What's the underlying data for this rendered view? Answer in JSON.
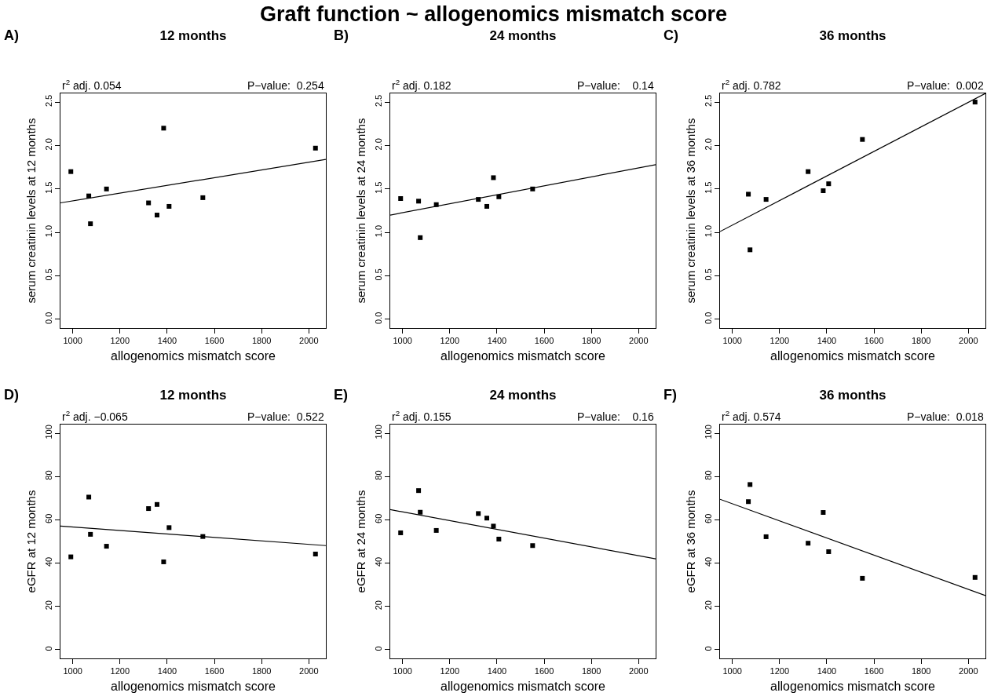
{
  "chart_data": [
    {
      "type": "scatter",
      "title": "12 months",
      "xlabel": "allogenomics mismatch score",
      "ylabel": "serum creatinin levels at 12 months",
      "annotations": [
        "Graft function ~ allogenomics mismatch score",
        "A)",
        "r$^{2}$ adj. 0.054",
        "P−value:  0.254"
      ],
      "xlim": [
        948,
        2072
      ],
      "xticks": [
        1000,
        1200,
        1400,
        1600,
        1800,
        2000
      ],
      "ylim": [
        -0.1,
        2.6
      ],
      "yticks": [
        {
          "value": 0,
          "label": "0.0"
        },
        {
          "value": 0.5,
          "label": "0.5"
        },
        {
          "value": 1,
          "label": "1.0"
        },
        {
          "value": 1.5,
          "label": "1.5"
        },
        {
          "value": 2,
          "label": "2.0"
        },
        {
          "value": 2.5,
          "label": "2.5"
        }
      ],
      "grid": false,
      "legend": false,
      "series": [
        {
          "color": "#000000",
          "marker": "square",
          "x": [
            992,
            1068,
            1075,
            1143,
            1321,
            1357,
            1385,
            1408,
            1551,
            2028
          ],
          "values": [
            1.7,
            1.42,
            1.1,
            1.5,
            1.34,
            1.2,
            2.2,
            1.3,
            1.4,
            1.97
          ]
        },
        {
          "type": "line",
          "color": "#000000",
          "x": [
            948,
            2072
          ],
          "values": [
            1.34,
            1.84
          ]
        }
      ]
    },
    {
      "type": "scatter",
      "title": "24 months",
      "xlabel": "allogenomics mismatch score",
      "ylabel": "serum creatinin levels at 24 months",
      "annotations": [
        "B)",
        "r$^{2}$ adj. 0.182",
        "P−value:    0.14"
      ],
      "xlim": [
        948,
        2072
      ],
      "xticks": [
        1000,
        1200,
        1400,
        1600,
        1800,
        2000
      ],
      "ylim": [
        -0.1,
        2.6
      ],
      "yticks": [
        {
          "value": 0,
          "label": "0.0"
        },
        {
          "value": 0.5,
          "label": "0.5"
        },
        {
          "value": 1,
          "label": "1.0"
        },
        {
          "value": 1.5,
          "label": "1.5"
        },
        {
          "value": 2,
          "label": "2.0"
        },
        {
          "value": 2.5,
          "label": "2.5"
        }
      ],
      "grid": false,
      "legend": false,
      "series": [
        {
          "color": "#000000",
          "marker": "square",
          "x": [
            992,
            1068,
            1075,
            1143,
            1321,
            1357,
            1385,
            1408,
            1551
          ],
          "values": [
            1.39,
            1.36,
            0.94,
            1.32,
            1.38,
            1.3,
            1.63,
            1.41,
            1.5
          ]
        },
        {
          "type": "line",
          "color": "#000000",
          "x": [
            948,
            2072
          ],
          "values": [
            1.2,
            1.78
          ]
        }
      ]
    },
    {
      "type": "scatter",
      "title": "36 months",
      "xlabel": "allogenomics mismatch score",
      "ylabel": "serum creatinin levels at 36 months",
      "annotations": [
        "C)",
        "r$^{2}$ adj. 0.782",
        "P−value:  0.002"
      ],
      "xlim": [
        948,
        2072
      ],
      "xticks": [
        1000,
        1200,
        1400,
        1600,
        1800,
        2000
      ],
      "ylim": [
        -0.1,
        2.6
      ],
      "yticks": [
        {
          "value": 0,
          "label": "0.0"
        },
        {
          "value": 0.5,
          "label": "0.5"
        },
        {
          "value": 1,
          "label": "1.0"
        },
        {
          "value": 1.5,
          "label": "1.5"
        },
        {
          "value": 2,
          "label": "2.0"
        },
        {
          "value": 2.5,
          "label": "2.5"
        }
      ],
      "grid": false,
      "legend": false,
      "series": [
        {
          "color": "#000000",
          "marker": "square",
          "x": [
            1068,
            1075,
            1143,
            1321,
            1385,
            1408,
            1551,
            2028
          ],
          "values": [
            1.44,
            0.8,
            1.38,
            1.7,
            1.48,
            1.56,
            2.07,
            2.5
          ]
        },
        {
          "type": "line",
          "color": "#000000",
          "x": [
            948,
            2072
          ],
          "values": [
            1.01,
            2.6
          ]
        }
      ]
    },
    {
      "type": "scatter",
      "title": "12 months",
      "xlabel": "allogenomics mismatch score",
      "ylabel": "eGFR at 12 months",
      "annotations": [
        "D)",
        "r$^{2}$ adj. −0.065",
        "P−value:  0.522"
      ],
      "xlim": [
        948,
        2072
      ],
      "xticks": [
        1000,
        1200,
        1400,
        1600,
        1800,
        2000
      ],
      "ylim": [
        -4,
        104
      ],
      "yticks": [
        0,
        20,
        40,
        60,
        80,
        100
      ],
      "grid": false,
      "legend": false,
      "series": [
        {
          "color": "#000000",
          "marker": "square",
          "x": [
            992,
            1068,
            1075,
            1143,
            1321,
            1357,
            1385,
            1408,
            1551,
            2028
          ],
          "values": [
            42.9,
            70.5,
            53.3,
            47.8,
            65.2,
            67.1,
            40.6,
            56.4,
            52.3,
            44.2
          ]
        },
        {
          "type": "line",
          "color": "#000000",
          "x": [
            948,
            2072
          ],
          "values": [
            57.1,
            48.1
          ]
        }
      ]
    },
    {
      "type": "scatter",
      "title": "24 months",
      "xlabel": "allogenomics mismatch score",
      "ylabel": "eGFR at 24 months",
      "annotations": [
        "E)",
        "r$^{2}$ adj. 0.155",
        "P−value:    0.16"
      ],
      "xlim": [
        948,
        2072
      ],
      "xticks": [
        1000,
        1200,
        1400,
        1600,
        1800,
        2000
      ],
      "ylim": [
        -4,
        104
      ],
      "yticks": [
        0,
        20,
        40,
        60,
        80,
        100
      ],
      "grid": false,
      "legend": false,
      "series": [
        {
          "color": "#000000",
          "marker": "square",
          "x": [
            992,
            1068,
            1075,
            1143,
            1321,
            1357,
            1385,
            1408,
            1551
          ],
          "values": [
            54.0,
            73.5,
            63.5,
            55.1,
            62.9,
            60.8,
            57.1,
            51.1,
            48.1
          ]
        },
        {
          "type": "line",
          "color": "#000000",
          "x": [
            948,
            2072
          ],
          "values": [
            64.7,
            42.0
          ]
        }
      ]
    },
    {
      "type": "scatter",
      "title": "36 months",
      "xlabel": "allogenomics mismatch score",
      "ylabel": "eGFR at 36 months",
      "annotations": [
        "F)",
        "r$^{2}$ adj. 0.574",
        "P−value:  0.018"
      ],
      "xlim": [
        948,
        2072
      ],
      "xticks": [
        1000,
        1200,
        1400,
        1600,
        1800,
        2000
      ],
      "ylim": [
        -4,
        104
      ],
      "yticks": [
        0,
        20,
        40,
        60,
        80,
        100
      ],
      "grid": false,
      "legend": false,
      "series": [
        {
          "color": "#000000",
          "marker": "square",
          "x": [
            1068,
            1075,
            1143,
            1321,
            1385,
            1408,
            1551,
            2028
          ],
          "values": [
            68.4,
            76.3,
            52.2,
            49.2,
            63.4,
            45.3,
            33.0,
            33.4
          ]
        },
        {
          "type": "line",
          "color": "#000000",
          "x": [
            948,
            2072
          ],
          "values": [
            69.5,
            25.0
          ]
        }
      ]
    }
  ]
}
